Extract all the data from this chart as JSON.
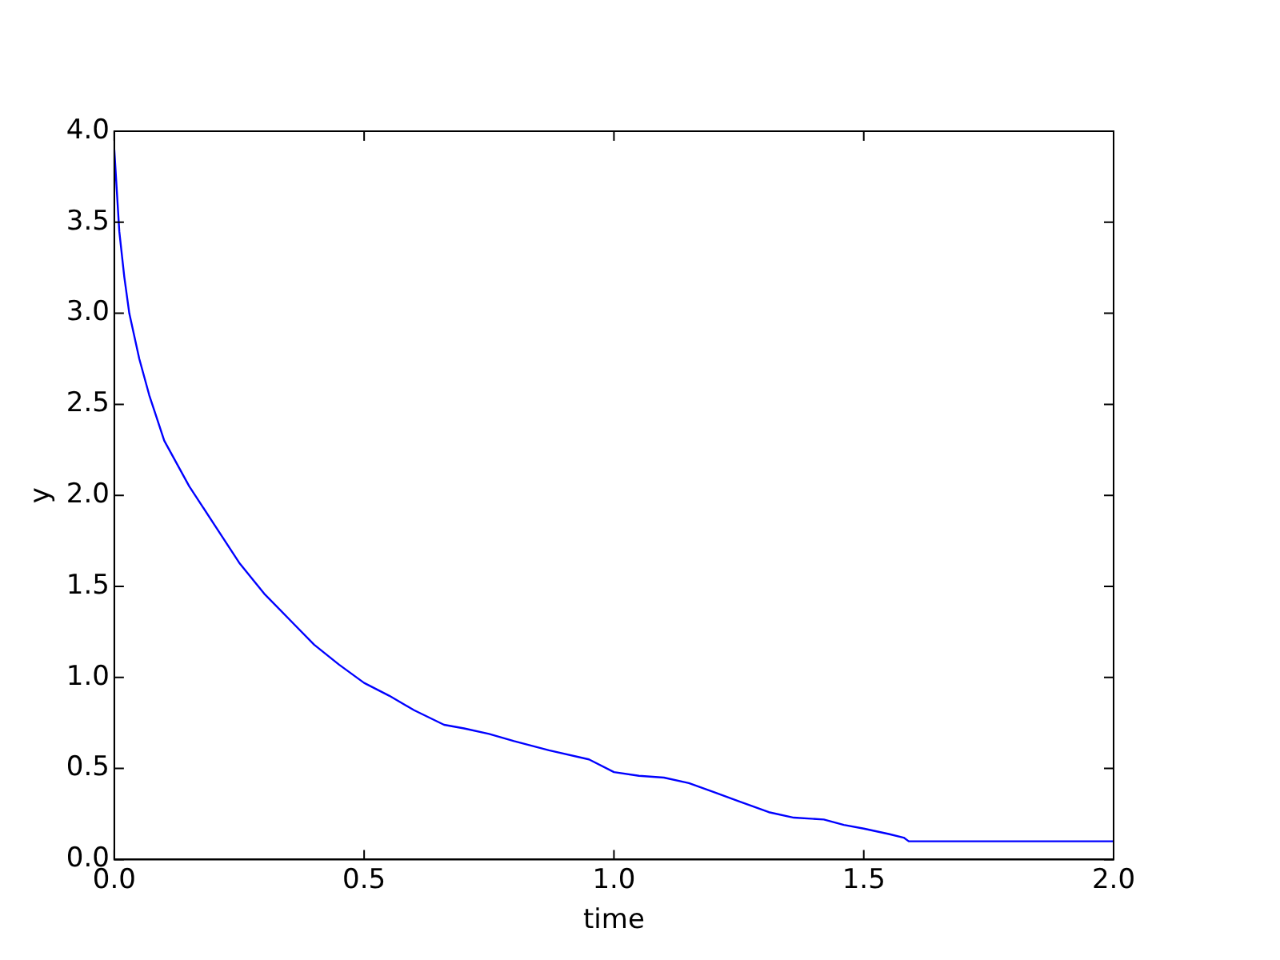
{
  "chart_data": {
    "type": "line",
    "xlabel": "time",
    "ylabel": "y",
    "x": [
      0,
      0.01,
      0.02,
      0.03,
      0.05,
      0.07,
      0.1,
      0.15,
      0.2,
      0.25,
      0.3,
      0.35,
      0.4,
      0.45,
      0.5,
      0.55,
      0.6,
      0.66,
      0.7,
      0.75,
      0.8,
      0.87,
      0.95,
      1.0,
      1.05,
      1.1,
      1.15,
      1.2,
      1.25,
      1.31,
      1.36,
      1.42,
      1.46,
      1.5,
      1.55,
      1.58,
      1.59,
      2.0
    ],
    "series": [
      {
        "color": "#0000ff",
        "values": [
          3.9,
          3.45,
          3.2,
          3.0,
          2.75,
          2.55,
          2.3,
          2.05,
          1.84,
          1.63,
          1.46,
          1.32,
          1.18,
          1.07,
          0.97,
          0.9,
          0.82,
          0.74,
          0.72,
          0.69,
          0.65,
          0.6,
          0.55,
          0.48,
          0.46,
          0.45,
          0.42,
          0.37,
          0.32,
          0.26,
          0.23,
          0.22,
          0.19,
          0.17,
          0.14,
          0.12,
          0.1,
          0.1
        ]
      }
    ],
    "xlim": [
      0,
      2
    ],
    "xticks": [
      {
        "value": 0,
        "label": "0.0"
      },
      {
        "value": 0.5,
        "label": "0.5"
      },
      {
        "value": 1,
        "label": "1.0"
      },
      {
        "value": 1.5,
        "label": "1.5"
      },
      {
        "value": 2,
        "label": "2.0"
      }
    ],
    "ylim": [
      0,
      4
    ],
    "yticks": [
      {
        "value": 0,
        "label": "0.0"
      },
      {
        "value": 0.5,
        "label": "0.5"
      },
      {
        "value": 1,
        "label": "1.0"
      },
      {
        "value": 1.5,
        "label": "1.5"
      },
      {
        "value": 2,
        "label": "2.0"
      },
      {
        "value": 2.5,
        "label": "2.5"
      },
      {
        "value": 3,
        "label": "3.0"
      },
      {
        "value": 3.5,
        "label": "3.5"
      },
      {
        "value": 4,
        "label": "4.0"
      }
    ],
    "grid": false,
    "legend": false,
    "marker": "none",
    "line_style": "solid"
  }
}
